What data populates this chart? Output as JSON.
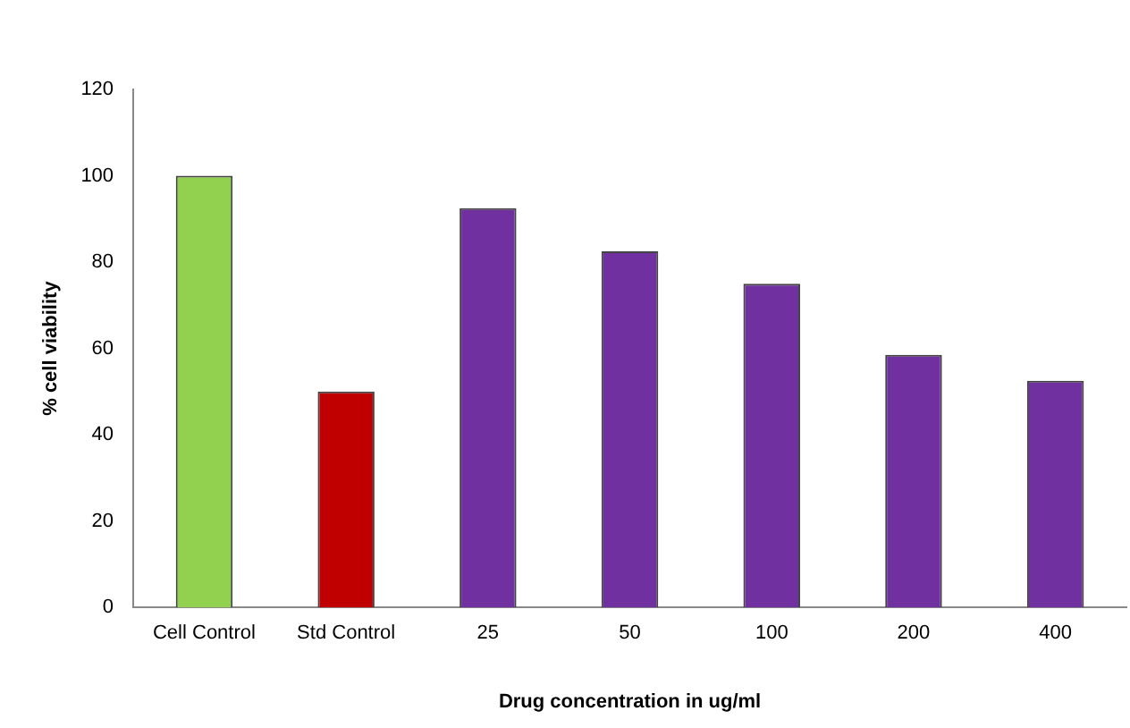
{
  "chart_data": {
    "type": "bar",
    "xlabel": "Drug concentration in ug/ml",
    "ylabel": "% cell viability",
    "categories": [
      "Cell Control",
      "Std Control",
      "25",
      "50",
      "100",
      "200",
      "400"
    ],
    "values": [
      100,
      50,
      92.5,
      82.5,
      75,
      58.5,
      52.5
    ],
    "colors": [
      "#92d050",
      "#c00000",
      "#7030a0",
      "#7030a0",
      "#7030a0",
      "#7030a0",
      "#7030a0"
    ],
    "ylim": [
      0,
      120
    ],
    "yticks": [
      0,
      20,
      40,
      60,
      80,
      100,
      120
    ],
    "grid": false,
    "legend": false
  }
}
